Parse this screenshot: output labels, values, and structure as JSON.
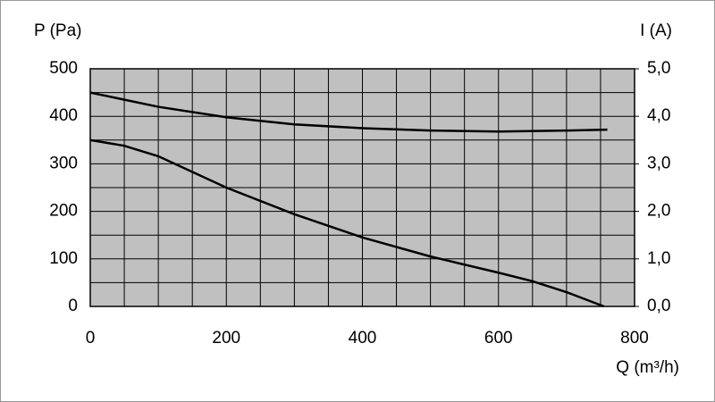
{
  "chart_data": {
    "type": "line",
    "ylabel": "P (Pa)",
    "y2label": "I (A)",
    "xlabel": "Q (m³/h)",
    "xlim": [
      0,
      800
    ],
    "xticks": [
      0,
      200,
      400,
      600,
      800
    ],
    "xgrid": [
      50,
      100,
      150,
      250,
      300,
      350,
      450,
      500,
      550,
      650,
      700,
      750
    ],
    "ylim": [
      0,
      500
    ],
    "yticks": [
      0,
      100,
      200,
      300,
      400,
      500
    ],
    "ygrid": [
      50,
      150,
      250,
      350,
      450
    ],
    "y2lim": [
      0,
      5
    ],
    "y2ticks": [
      {
        "value": 0,
        "label": "0,0"
      },
      {
        "value": 1,
        "label": "1,0"
      },
      {
        "value": 2,
        "label": "2,0"
      },
      {
        "value": 3,
        "label": "3,0"
      },
      {
        "value": 4,
        "label": "4,0"
      },
      {
        "value": 5,
        "label": "5,0"
      }
    ],
    "grid": true,
    "plot_background": "#c0c0c0",
    "series": [
      {
        "name": null,
        "color": "#000000",
        "x": [
          0,
          50,
          100,
          200,
          300,
          400,
          500,
          600,
          650,
          700,
          755
        ],
        "values": [
          350,
          338,
          316,
          250,
          194,
          145,
          105,
          71,
          53,
          30,
          0
        ]
      },
      {
        "name": null,
        "color": "#000000",
        "axis": "y2",
        "x": [
          0,
          100,
          200,
          300,
          400,
          500,
          600,
          700,
          760
        ],
        "values": [
          4.5,
          4.2,
          3.98,
          3.83,
          3.75,
          3.7,
          3.68,
          3.7,
          3.72
        ]
      }
    ]
  }
}
